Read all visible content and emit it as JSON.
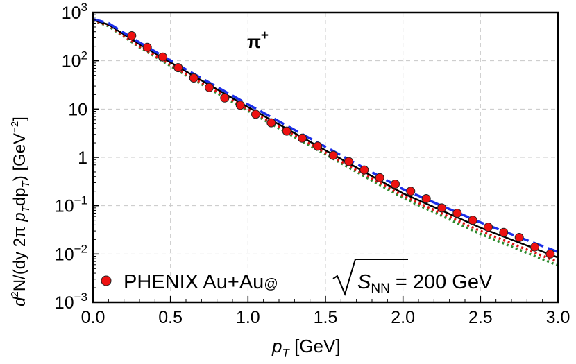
{
  "chart_data": {
    "type": "scatter",
    "title": "",
    "annotation": {
      "symbol": "π",
      "superscript": "+"
    },
    "xlabel": {
      "main": "p",
      "sub": "T",
      "unit": " [GeV]"
    },
    "ylabel": {
      "d": "d",
      "sup2": "2",
      "n_open": "N/(dy 2π ",
      "p1": "p",
      "sub1": "T",
      "dp": "dp",
      "sub2": "T",
      "close": ") [GeV",
      "sup_unit": "−2",
      "end": "]"
    },
    "xlim": [
      0,
      3.0
    ],
    "ylim": [
      0.001,
      1000
    ],
    "yscale": "log",
    "grid": true,
    "xticks": [
      "0.0",
      "0.5",
      "1.0",
      "1.5",
      "2.0",
      "2.5",
      "3.0"
    ],
    "yticks": [
      {
        "base": "10",
        "exp": "−3"
      },
      {
        "base": "10",
        "exp": "−2"
      },
      {
        "base": "10",
        "exp": "−1"
      },
      {
        "base": "1",
        "exp": ""
      },
      {
        "base": "10",
        "exp": ""
      },
      {
        "base": "10",
        "exp": "2"
      },
      {
        "base": "10",
        "exp": "3"
      }
    ],
    "legend": {
      "position": "bottom-left",
      "entries": [
        {
          "label_prefix": "PHENIX Au+Au",
          "label_at": "@",
          "label_s": "S",
          "label_sub": "NN",
          "label_suffix": " = 200 GeV"
        }
      ]
    },
    "series": [
      {
        "marker": "circle",
        "color": "#ee1111",
        "x": [
          0.25,
          0.35,
          0.45,
          0.55,
          0.65,
          0.75,
          0.85,
          0.95,
          1.05,
          1.15,
          1.25,
          1.35,
          1.45,
          1.55,
          1.65,
          1.75,
          1.85,
          1.95,
          2.05,
          2.15,
          2.25,
          2.35,
          2.45,
          2.55,
          2.65,
          2.75,
          2.85,
          2.95
        ],
        "y": [
          330,
          190,
          120,
          72,
          44,
          28,
          17,
          12,
          7.8,
          5.2,
          3.5,
          2.5,
          1.7,
          1.1,
          0.82,
          0.55,
          0.38,
          0.28,
          0.2,
          0.14,
          0.09,
          0.07,
          0.05,
          0.036,
          0.028,
          0.022,
          0.014,
          0.01
        ]
      },
      {
        "line": "solid",
        "color": "#000000",
        "x": [
          0.0,
          0.1,
          0.3,
          0.6,
          1.0,
          1.5,
          2.0,
          2.5,
          3.0
        ],
        "y": [
          700,
          560,
          220,
          60,
          11,
          1.4,
          0.18,
          0.035,
          0.0085
        ]
      },
      {
        "line": "dashed",
        "color": "#1a2ee8",
        "x": [
          0.0,
          0.1,
          0.3,
          0.6,
          1.0,
          1.5,
          2.0,
          2.5,
          3.0
        ],
        "y": [
          730,
          600,
          240,
          66,
          12.5,
          1.65,
          0.22,
          0.045,
          0.011
        ]
      },
      {
        "line": "dotted",
        "color": "#dd1111",
        "x": [
          0.0,
          0.1,
          0.3,
          0.6,
          1.0,
          1.5,
          2.0,
          2.5,
          3.0
        ],
        "y": [
          690,
          540,
          200,
          54,
          10,
          1.25,
          0.16,
          0.03,
          0.0068
        ]
      },
      {
        "line": "dotted",
        "color": "#2e8b2e",
        "x": [
          0.0,
          0.1,
          0.3,
          0.6,
          1.0,
          1.5,
          2.0,
          2.5,
          3.0
        ],
        "y": [
          680,
          520,
          190,
          50,
          9.2,
          1.15,
          0.145,
          0.026,
          0.0058
        ]
      }
    ]
  }
}
